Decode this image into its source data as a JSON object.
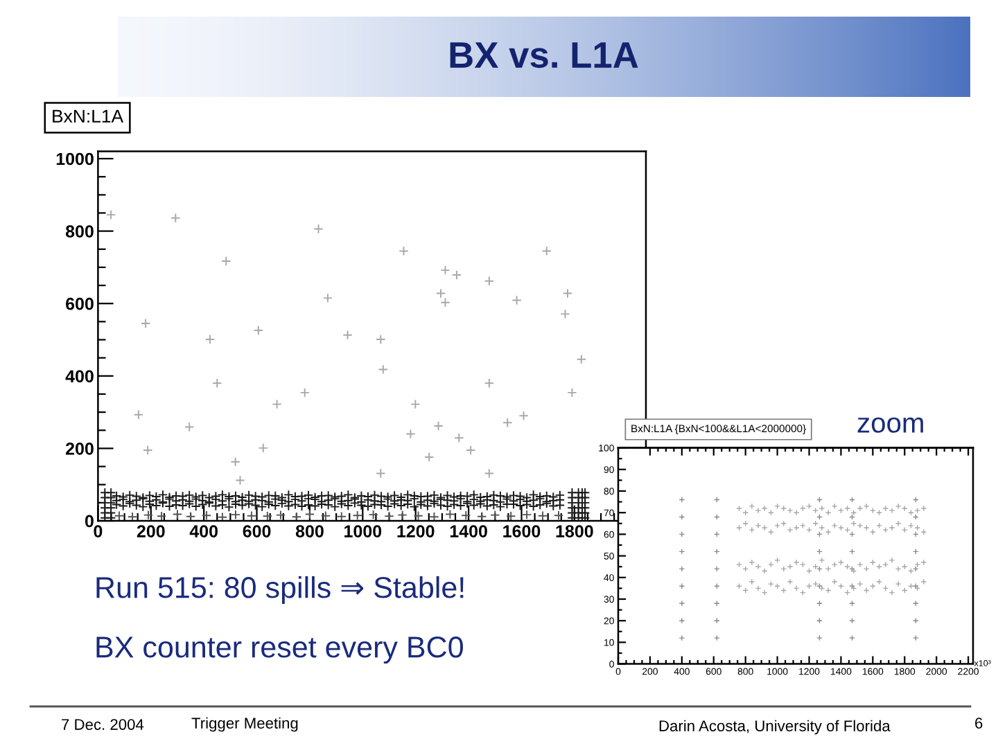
{
  "chart_data": [
    {
      "type": "scatter",
      "title": "BX vs. L1A",
      "subtitle": "BxN:L1A",
      "marker": "cross",
      "annotations": [
        "Run 515: 80 spills ⇒ Stable!",
        "BX counter reset every BC0",
        "7 Dec. 2004",
        "Trigger Meeting",
        "Darin Acosta, University of Florida",
        "6"
      ],
      "x": [
        70,
        95,
        120,
        145,
        170,
        195,
        220,
        245,
        270,
        295,
        320,
        345,
        370,
        395,
        420,
        445,
        470,
        495,
        520,
        545,
        570,
        595,
        620,
        645,
        670,
        695,
        720,
        745,
        770,
        795,
        820,
        845,
        870,
        895,
        920,
        945,
        970,
        995,
        1020,
        1045,
        1070,
        1095,
        1120,
        1145,
        1170,
        1195,
        1220,
        1245,
        1270,
        1295,
        1320,
        1345,
        1370,
        1395,
        1420,
        1445,
        1470,
        1495,
        1520,
        1545,
        1570,
        1595,
        1620,
        1645,
        1670,
        1695,
        1720,
        1745
      ],
      "series": [
        {
          "color": "#1a1a1a",
          "values": [
            69,
            66,
            71,
            68,
            64,
            70,
            67,
            72,
            65,
            69,
            68,
            71,
            66,
            70,
            64,
            68,
            72,
            67,
            69,
            65,
            71,
            68,
            66,
            70,
            69,
            64,
            72,
            67,
            68,
            71,
            65,
            69,
            70,
            66,
            68,
            72,
            64,
            69,
            67,
            71,
            68,
            66,
            70,
            65,
            72,
            69,
            67,
            68,
            71,
            64,
            70,
            66,
            69,
            68,
            72,
            65,
            67,
            71,
            69,
            66,
            70,
            68,
            64,
            72,
            67,
            69,
            66,
            71
          ]
        },
        {
          "color": "#1a1a1a",
          "values": [
            56,
            59,
            53,
            57,
            61,
            54,
            58,
            52,
            60,
            55,
            58,
            54,
            60,
            56,
            52,
            59,
            55,
            61,
            53,
            57,
            54,
            58,
            56,
            52,
            60,
            57,
            53,
            59,
            55,
            61,
            59,
            53,
            57,
            61,
            54,
            56,
            60,
            52,
            58,
            55,
            53,
            60,
            55,
            58,
            56,
            61,
            52,
            57,
            54,
            59,
            57,
            55,
            61,
            53,
            59,
            54,
            58,
            56,
            52,
            60,
            55,
            59,
            54,
            57,
            61,
            53,
            56,
            58
          ]
        },
        {
          "color": "#1a1a1a",
          "values": [
            45,
            41,
            48,
            43,
            39,
            46,
            42,
            49,
            40,
            44,
            42,
            47,
            40,
            45,
            49,
            41,
            44,
            38,
            46,
            43,
            47,
            43,
            39,
            46,
            42,
            48,
            41,
            45,
            40,
            44,
            41,
            46,
            44,
            39,
            47,
            42,
            49,
            43,
            40,
            45,
            44,
            40,
            47,
            42,
            46,
            39,
            45,
            41,
            48,
            43,
            40,
            45,
            42,
            48,
            43,
            47,
            41,
            44,
            39,
            46,
            46,
            42,
            45,
            40,
            44,
            48,
            41,
            43
          ]
        },
        {
          "color": "#555555",
          "x": [
            80,
            130,
            190,
            240,
            300,
            350,
            410,
            470,
            520,
            580,
            640,
            690,
            750,
            800,
            860,
            920,
            980,
            1040,
            1100,
            1150,
            1210,
            1270,
            1330,
            1390,
            1450,
            1500,
            1560,
            1620,
            1680,
            1740
          ],
          "values": [
            14,
            11,
            16,
            13,
            18,
            12,
            15,
            10,
            17,
            14,
            13,
            16,
            11,
            18,
            14,
            12,
            15,
            17,
            13,
            16,
            14,
            11,
            18,
            15,
            12,
            16,
            13,
            17,
            14,
            15
          ]
        },
        {
          "color": "#1a1a1a",
          "x": [
            26,
            26,
            26,
            26,
            26,
            26,
            49,
            49,
            49,
            49,
            49,
            49,
            1791,
            1791,
            1791,
            1791,
            1791,
            1791,
            1815,
            1815,
            1815,
            1815,
            1815,
            1815,
            1829,
            1829,
            1829,
            1829,
            1829,
            1829,
            1840,
            1840,
            1840,
            1840,
            1840,
            1840
          ],
          "values": [
            8,
            22,
            36,
            50,
            64,
            78,
            8,
            22,
            36,
            50,
            64,
            78,
            8,
            22,
            36,
            50,
            64,
            78,
            8,
            22,
            36,
            50,
            64,
            78,
            8,
            22,
            36,
            50,
            64,
            78,
            8,
            22,
            36,
            50,
            64,
            78
          ]
        },
        {
          "color": "#a8a8a8",
          "x": [
            49,
            293,
            833,
            1155,
            1695,
            484,
            1312,
            1355,
            1478,
            1295,
            1774,
            1312,
            868,
            1582,
            180,
            1765,
            606,
            943,
            1068,
            423,
            1826,
            1077,
            450,
            1478,
            781,
            676,
            1199,
            1791,
            153,
            345,
            1547,
            1608,
            1286,
            1364,
            1181,
            188,
            624,
            1408,
            1251,
            519,
            1068,
            1478,
            537
          ],
          "values": [
            845,
            836,
            806,
            745,
            745,
            717,
            692,
            679,
            662,
            628,
            628,
            603,
            615,
            609,
            545,
            571,
            526,
            513,
            501,
            501,
            446,
            418,
            380,
            380,
            354,
            322,
            322,
            354,
            293,
            259,
            271,
            290,
            262,
            229,
            240,
            195,
            201,
            195,
            176,
            163,
            131,
            131,
            112
          ]
        }
      ],
      "xlim": [
        0,
        2070
      ],
      "ylim": [
        0,
        1020
      ],
      "xticks": [
        0,
        200,
        400,
        600,
        800,
        1000,
        1200,
        1400,
        1600,
        1800
      ],
      "yticks": [
        0,
        200,
        400,
        600,
        800,
        1000
      ]
    },
    {
      "type": "scatter",
      "title": "BxN:L1A {BxN<100&&L1A<2000000}",
      "xlabel": "x10³",
      "annotations": [
        "zoom"
      ],
      "marker": "cross",
      "x": [
        760,
        800,
        840,
        880,
        920,
        960,
        1000,
        1040,
        1080,
        1120,
        1160,
        1200,
        1240,
        1280,
        1320,
        1360,
        1400,
        1440,
        1480,
        1520,
        1560,
        1600,
        1640,
        1680,
        1720,
        1760,
        1800,
        1840,
        1880,
        1920
      ],
      "series": [
        {
          "color": "#a6a6a6",
          "values": [
            72,
            70,
            73,
            71,
            72,
            70,
            73,
            72,
            71,
            70,
            72,
            73,
            71,
            72,
            70,
            73,
            71,
            72,
            70,
            72,
            73,
            71,
            70,
            72,
            71,
            73,
            72,
            70,
            71,
            72
          ]
        },
        {
          "color": "#a6a6a6",
          "values": [
            63,
            65,
            62,
            64,
            63,
            61,
            64,
            65,
            62,
            63,
            64,
            62,
            65,
            63,
            61,
            64,
            63,
            62,
            65,
            64,
            63,
            61,
            64,
            62,
            63,
            65,
            62,
            64,
            63,
            61
          ]
        },
        {
          "color": "#a6a6a6",
          "values": [
            46,
            44,
            47,
            45,
            43,
            46,
            48,
            44,
            45,
            47,
            46,
            43,
            45,
            48,
            44,
            46,
            47,
            45,
            43,
            46,
            44,
            47,
            45,
            46,
            48,
            44,
            45,
            43,
            46,
            47
          ]
        },
        {
          "color": "#a6a6a6",
          "values": [
            36,
            34,
            38,
            35,
            33,
            37,
            36,
            34,
            38,
            35,
            33,
            36,
            37,
            35,
            34,
            38,
            36,
            33,
            35,
            37,
            34,
            36,
            38,
            35,
            33,
            37,
            34,
            36,
            35,
            38
          ]
        },
        {
          "color": "#888888",
          "x": [
            400,
            400,
            400,
            400,
            400,
            400,
            400,
            400,
            400,
            620,
            620,
            620,
            620,
            620,
            620,
            620,
            620,
            620,
            1265,
            1265,
            1265,
            1265,
            1265,
            1265,
            1265,
            1265,
            1265,
            1470,
            1470,
            1470,
            1470,
            1470,
            1470,
            1470,
            1470,
            1470,
            1870,
            1870,
            1870,
            1870,
            1870,
            1870,
            1870,
            1870,
            1870
          ],
          "values": [
            12,
            20,
            28,
            36,
            44,
            52,
            60,
            68,
            76,
            12,
            20,
            28,
            36,
            44,
            52,
            60,
            68,
            76,
            12,
            20,
            28,
            36,
            44,
            52,
            60,
            68,
            76,
            12,
            20,
            28,
            36,
            44,
            52,
            60,
            68,
            76,
            12,
            20,
            28,
            36,
            44,
            52,
            60,
            68,
            76
          ]
        }
      ],
      "xlim": [
        0,
        2230
      ],
      "ylim": [
        0,
        100
      ],
      "xticks": [
        0,
        200,
        400,
        600,
        800,
        1000,
        1200,
        1400,
        1600,
        1800,
        2000,
        2200
      ],
      "yticks": [
        0,
        10,
        20,
        30,
        40,
        50,
        60,
        70,
        80,
        90,
        100
      ]
    }
  ]
}
